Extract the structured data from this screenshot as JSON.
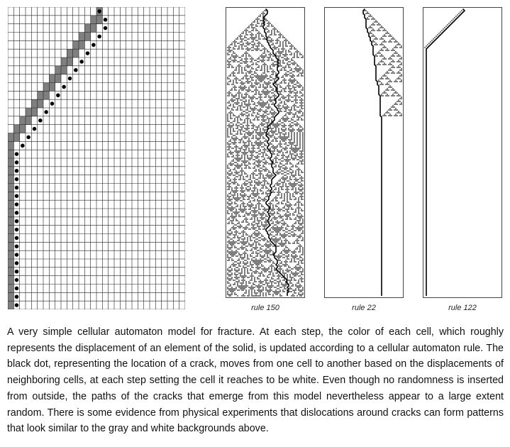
{
  "colors": {
    "gray_cell": "#7f7f7f",
    "white_cell": "#ffffff",
    "grid_line": "#222222",
    "crack": "#000000",
    "frame": "#444444"
  },
  "main_figure": {
    "description_icon": "grid-of-cells-with-crack-dots",
    "rows": 36,
    "columns": 30
  },
  "panels": [
    {
      "label": "rule 150",
      "rule": 150
    },
    {
      "label": "rule 22",
      "rule": 22
    },
    {
      "label": "rule 122",
      "rule": 122
    }
  ],
  "caption": "A very simple cellular automaton model for fracture. At each step, the color of each cell, which roughly represents the displacement of an element of the solid, is updated according to a cellular automaton rule. The black dot, representing the location of a crack, moves from one cell to another based on the displacements of neighboring cells, at each step setting the cell it reaches to be white. Even though no randomness is inserted from outside, the paths of the cracks that emerge from this model nevertheless appear to a large extent random. There is some evidence from physical experiments that dislocations around cracks can form patterns that look similar to the gray and white backgrounds above."
}
